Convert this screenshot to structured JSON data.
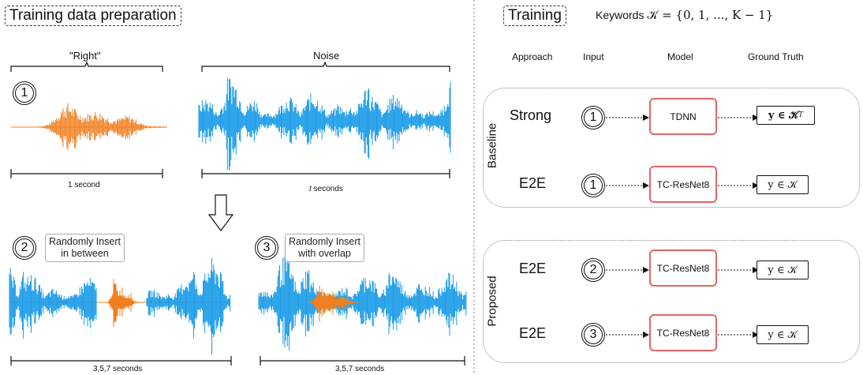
{
  "left": {
    "title": "Training data preparation",
    "right_label": "\"Right\"",
    "noise_label": "Noise",
    "one_second": "1 second",
    "t_seconds_var": "t",
    "t_seconds_unit": " seconds",
    "insert_between": "Randomly Insert\nin between",
    "insert_overlap": "Randomly Insert\nwith overlap",
    "dur_a": "3,5,7 seconds",
    "dur_b": "3,5,7 seconds",
    "circle1": "1",
    "circle2": "2",
    "circle3": "3"
  },
  "right": {
    "title": "Training",
    "keywords_prefix": "Keywords ",
    "keywords_math": "𝒦 = {0, 1, ..., K − 1}",
    "headers": {
      "approach": "Approach",
      "input": "Input",
      "model": "Model",
      "ground_truth": "Ground Truth"
    },
    "baseline_label": "Baseline",
    "proposed_label": "Proposed",
    "rows": [
      {
        "approach": "Strong",
        "input": "1",
        "model": "TDNN",
        "gt": "y ∈ 𝒦",
        "gt_sup": "T"
      },
      {
        "approach": "E2E",
        "input": "1",
        "model": "TC-ResNet8",
        "gt": "y ∈ 𝒦",
        "gt_sup": ""
      },
      {
        "approach": "E2E",
        "input": "2",
        "model": "TC-ResNet8",
        "gt": "y ∈ 𝒦",
        "gt_sup": ""
      },
      {
        "approach": "E2E",
        "input": "3",
        "model": "TC-ResNet8",
        "gt": "y ∈ 𝒦",
        "gt_sup": ""
      }
    ]
  },
  "colors": {
    "speech": "#f07f1f",
    "noise": "#1a9be8",
    "model_border": "#e06666"
  }
}
